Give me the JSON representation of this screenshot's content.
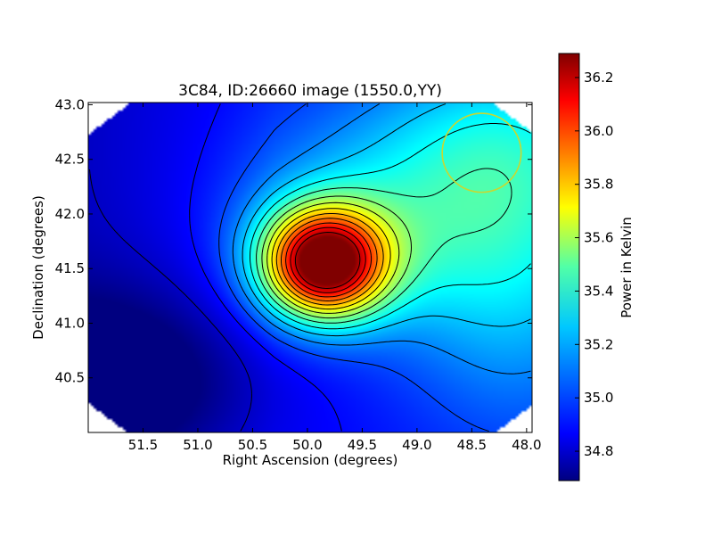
{
  "chart_data": {
    "type": "heatmap",
    "title": "3C84, ID:26660 image (1550.0,YY)",
    "xlabel": "Right Ascension (degrees)",
    "ylabel": "Declination (degrees)",
    "colorbar_label": "Power in Kelvin",
    "xlim": [
      52.0,
      47.95
    ],
    "ylim": [
      40.0,
      43.02
    ],
    "x_ticks": [
      51.5,
      51.0,
      50.5,
      50.0,
      49.5,
      49.0,
      48.5,
      48.0
    ],
    "x_tick_labels": [
      "51.5",
      "51.0",
      "50.5",
      "50.0",
      "49.5",
      "49.0",
      "48.5",
      "48.0"
    ],
    "y_ticks": [
      40.5,
      41.0,
      41.5,
      42.0,
      42.5,
      43.0
    ],
    "y_tick_labels": [
      "40.5",
      "41.0",
      "41.5",
      "42.0",
      "42.5",
      "43.0"
    ],
    "colorbar_range": [
      34.69,
      36.29
    ],
    "colorbar_ticks": [
      34.8,
      35.0,
      35.2,
      35.4,
      35.6,
      35.8,
      36.0,
      36.2
    ],
    "colorbar_tick_labels": [
      "34.8",
      "35.0",
      "35.2",
      "35.4",
      "35.6",
      "35.8",
      "36.0",
      "36.2"
    ],
    "colormap": "jet",
    "peak": {
      "ra": 49.85,
      "dec": 41.55,
      "value": 36.28
    },
    "minimum": {
      "ra": 51.9,
      "dec": 40.1,
      "value": 34.69
    },
    "beam_circle": {
      "ra": 48.41,
      "dec": 42.56,
      "radius_deg": 0.36,
      "color": "#c8d830"
    },
    "contour_color": "#000000",
    "grid": false
  }
}
